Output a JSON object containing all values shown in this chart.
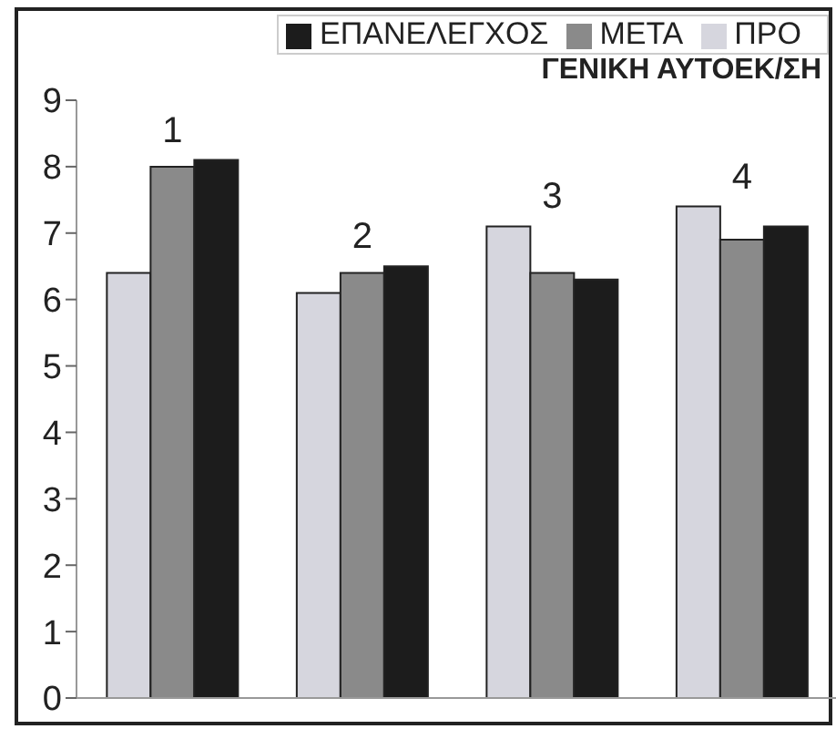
{
  "chart_data": {
    "type": "bar",
    "title": "ΓΕΝΙΚΗ ΑΥΤΟΕΚ/ΣΗ",
    "categories": [
      "1",
      "2",
      "3",
      "4"
    ],
    "series": [
      {
        "name": "ΠΡΟ",
        "color": "#d6d6de",
        "values": [
          6.4,
          6.1,
          7.1,
          7.4
        ]
      },
      {
        "name": "ΜΕΤΑ",
        "color": "#8a8a8a",
        "values": [
          8.0,
          6.4,
          6.4,
          6.9
        ]
      },
      {
        "name": "ΕΠΑΝΕΛΕΓΧΟΣ",
        "color": "#1c1c1c",
        "values": [
          8.1,
          6.5,
          6.3,
          7.1
        ]
      }
    ],
    "ylim": [
      0,
      9
    ],
    "yticks": [
      0,
      1,
      2,
      3,
      4,
      5,
      6,
      7,
      8,
      9
    ],
    "grid": false,
    "legend": "top right"
  }
}
